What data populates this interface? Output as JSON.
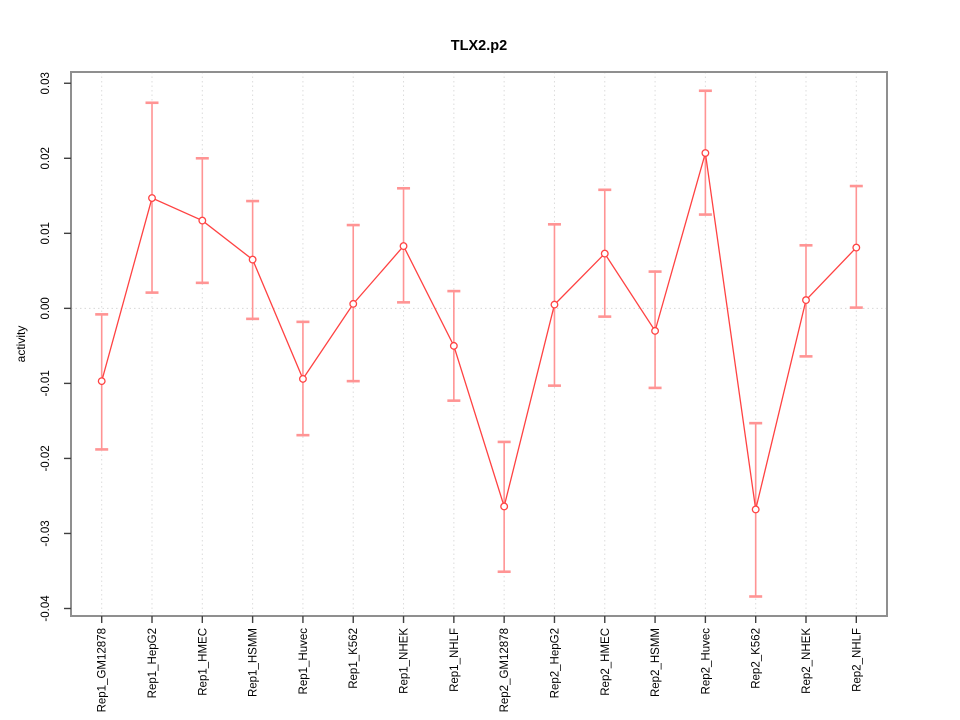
{
  "chart_data": {
    "type": "line",
    "title": "TLX2.p2",
    "ylabel": "activity",
    "xlabel": "",
    "legend": "none",
    "grid": {
      "vertical_at_each_category": true,
      "horizontal_at_zero": true,
      "style": "dotted"
    },
    "categories": [
      "Rep1_GM12878",
      "Rep1_HepG2",
      "Rep1_HMEC",
      "Rep1_HSMM",
      "Rep1_Huvec",
      "Rep1_K562",
      "Rep1_NHEK",
      "Rep1_NHLF",
      "Rep2_GM12878",
      "Rep2_HepG2",
      "Rep2_HMEC",
      "Rep2_HSMM",
      "Rep2_Huvec",
      "Rep2_K562",
      "Rep2_NHEK",
      "Rep2_NHLF"
    ],
    "series": [
      {
        "name": "activity",
        "marker": "open-circle",
        "values": [
          -0.0097,
          0.0147,
          0.0117,
          0.0065,
          -0.0094,
          0.0006,
          0.0083,
          -0.005,
          -0.0264,
          0.0005,
          0.0073,
          -0.003,
          0.0207,
          -0.0268,
          0.0011,
          0.0081
        ],
        "error_lower": [
          -0.0188,
          0.0021,
          0.0034,
          -0.0014,
          -0.0169,
          -0.0097,
          0.0008,
          -0.0123,
          -0.0351,
          -0.0103,
          -0.0011,
          -0.0106,
          0.0125,
          -0.0384,
          -0.0064,
          0.0001
        ],
        "error_upper": [
          -0.0008,
          0.0274,
          0.02,
          0.0143,
          -0.0018,
          0.0111,
          0.016,
          0.0023,
          -0.0178,
          0.0112,
          0.0158,
          0.0049,
          0.029,
          -0.0153,
          0.0084,
          0.0163
        ]
      }
    ],
    "ylim": [
      -0.041,
      0.0315
    ],
    "yticks": [
      -0.04,
      -0.03,
      -0.02,
      -0.01,
      0.0,
      0.01,
      0.02,
      0.03
    ],
    "ytick_labels": [
      "-0.04",
      "-0.03",
      "-0.02",
      "-0.01",
      "0.00",
      "0.01",
      "0.02",
      "0.03"
    ],
    "colors": {
      "line": "#ff4242",
      "marker": "#ff4242",
      "marker_fill": "#ffffff",
      "error_bar": "#ff9494",
      "grid": "#dcdcdc",
      "zero_line": "#d8d8d8",
      "frame": "#8f8f8f",
      "tick": "#404040",
      "text": "#000000"
    }
  }
}
